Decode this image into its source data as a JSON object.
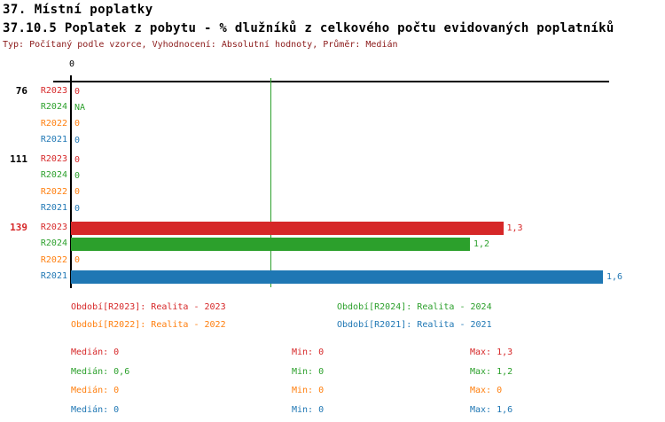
{
  "page": {
    "title1": "37. Místní poplatky",
    "title2": "37.10.5 Poplatek z pobytu - % dlužníků z celkového počtu evidovaných poplatníků",
    "subtitle": "Typ: Počítaný podle vzorce, Vyhodnocení: Absolutní hodnoty, Průměr: Medián"
  },
  "colors": {
    "R2023": "#d62728",
    "R2024": "#2ca02c",
    "R2022": "#ff7f0e",
    "R2021": "#1f77b4",
    "subtitle": "#8b1a1a",
    "axis": "#000000",
    "median_line": "#2ca02c",
    "group_id_default": "#000000",
    "group_id_highlight": "#d62728"
  },
  "chart_data": {
    "type": "bar",
    "orientation": "horizontal",
    "title": "37.10.5 Poplatek z pobytu - % dlužníků z celkového počtu evidovaných poplatníků",
    "xlim": [
      0,
      1.6
    ],
    "x_tick_labels": [
      "0"
    ],
    "grid": false,
    "median_line_value": 0.6,
    "series_labels": [
      "R2023",
      "R2024",
      "R2022",
      "R2021"
    ],
    "groups": [
      {
        "id": "76",
        "id_color": "#000000",
        "rows": [
          {
            "series": "R2023",
            "value": 0,
            "display": "0"
          },
          {
            "series": "R2024",
            "value": null,
            "display": "NA"
          },
          {
            "series": "R2022",
            "value": 0,
            "display": "0"
          },
          {
            "series": "R2021",
            "value": 0,
            "display": "0"
          }
        ]
      },
      {
        "id": "111",
        "id_color": "#000000",
        "rows": [
          {
            "series": "R2023",
            "value": 0,
            "display": "0"
          },
          {
            "series": "R2024",
            "value": 0,
            "display": "0"
          },
          {
            "series": "R2022",
            "value": 0,
            "display": "0"
          },
          {
            "series": "R2021",
            "value": 0,
            "display": "0"
          }
        ]
      },
      {
        "id": "139",
        "id_color": "#d62728",
        "rows": [
          {
            "series": "R2023",
            "value": 1.3,
            "display": "1,3"
          },
          {
            "series": "R2024",
            "value": 1.2,
            "display": "1,2"
          },
          {
            "series": "R2022",
            "value": 0,
            "display": "0"
          },
          {
            "series": "R2021",
            "value": 1.6,
            "display": "1,6"
          }
        ]
      }
    ],
    "stats": [
      {
        "series": "R2023",
        "median": 0,
        "min": 0,
        "max": 1.3
      },
      {
        "series": "R2024",
        "median": 0.6,
        "min": 0,
        "max": 1.2
      },
      {
        "series": "R2022",
        "median": 0,
        "min": 0,
        "max": 0
      },
      {
        "series": "R2021",
        "median": 0,
        "min": 0,
        "max": 1.6
      }
    ]
  },
  "legend": {
    "items": [
      {
        "series": "R2023",
        "label": "Období[R2023]: Realita - 2023"
      },
      {
        "series": "R2024",
        "label": "Období[R2024]: Realita - 2024"
      },
      {
        "series": "R2022",
        "label": "Období[R2022]: Realita - 2022"
      },
      {
        "series": "R2021",
        "label": "Období[R2021]: Realita - 2021"
      }
    ]
  },
  "stats_text": {
    "rows": [
      {
        "series": "R2023",
        "median": "Medián: 0",
        "min": "Min: 0",
        "max": "Max: 1,3"
      },
      {
        "series": "R2024",
        "median": "Medián: 0,6",
        "min": "Min: 0",
        "max": "Max: 1,2"
      },
      {
        "series": "R2022",
        "median": "Medián: 0",
        "min": "Min: 0",
        "max": "Max: 0"
      },
      {
        "series": "R2021",
        "median": "Medián: 0",
        "min": "Min: 0",
        "max": "Max: 1,6"
      }
    ]
  }
}
